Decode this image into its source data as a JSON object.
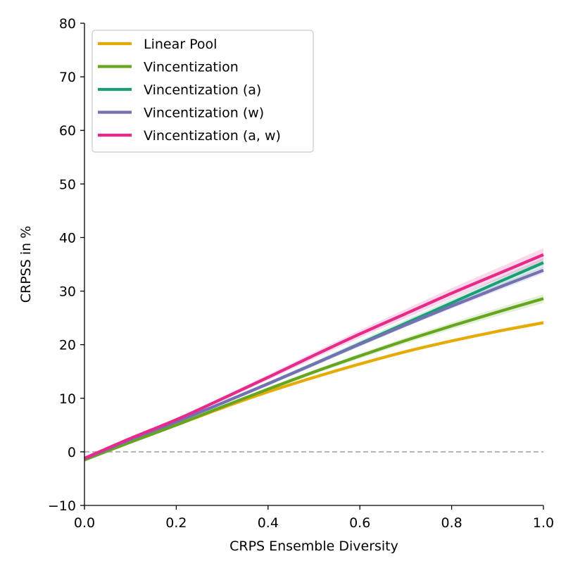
{
  "chart_data": {
    "type": "line",
    "title": "",
    "xlabel": "CRPS Ensemble Diversity",
    "ylabel": "CRPSS in %",
    "xlim": [
      0.0,
      1.0
    ],
    "ylim": [
      -10,
      80
    ],
    "xticks": [
      0.0,
      0.2,
      0.4,
      0.6,
      0.8,
      1.0
    ],
    "xtick_labels": [
      "0.0",
      "0.2",
      "0.4",
      "0.6",
      "0.8",
      "1.0"
    ],
    "yticks": [
      -10,
      0,
      10,
      20,
      30,
      40,
      50,
      60,
      70,
      80
    ],
    "ytick_labels": [
      "−10",
      "0",
      "10",
      "20",
      "30",
      "40",
      "50",
      "60",
      "70",
      "80"
    ],
    "grid": false,
    "legend_position": "top-left",
    "reference_line": {
      "y": 0,
      "style": "dashed",
      "color": "#b3b3b3"
    },
    "x": [
      0.0,
      0.1,
      0.2,
      0.3,
      0.4,
      0.5,
      0.6,
      0.7,
      0.8,
      0.9,
      1.0
    ],
    "series": [
      {
        "name": "Linear Pool",
        "color": "#e6ab02",
        "values": [
          -1.5,
          1.8,
          5.0,
          8.2,
          11.2,
          13.9,
          16.4,
          18.7,
          20.7,
          22.5,
          24.1
        ],
        "band": 0.3
      },
      {
        "name": "Vincentization",
        "color": "#66a61e",
        "values": [
          -1.5,
          1.8,
          5.0,
          8.4,
          11.7,
          14.9,
          17.9,
          20.8,
          23.5,
          26.1,
          28.6
        ],
        "band": 0.8
      },
      {
        "name": "Vincentization (a)",
        "color": "#1b9e77",
        "values": [
          -1.3,
          2.3,
          5.6,
          9.1,
          12.7,
          16.4,
          20.2,
          24.0,
          27.8,
          31.6,
          35.3
        ],
        "band": 0.9
      },
      {
        "name": "Vincentization (w)",
        "color": "#7570b3",
        "values": [
          -1.3,
          2.3,
          5.6,
          9.1,
          12.7,
          16.4,
          20.1,
          23.7,
          27.2,
          30.6,
          33.9
        ],
        "band": 0.6
      },
      {
        "name": "Vincentization (a, w)",
        "color": "#e7298a",
        "values": [
          -1.2,
          2.5,
          6.0,
          9.9,
          13.9,
          18.0,
          22.0,
          25.8,
          29.6,
          33.2,
          36.8
        ],
        "band": 1.2
      }
    ]
  }
}
